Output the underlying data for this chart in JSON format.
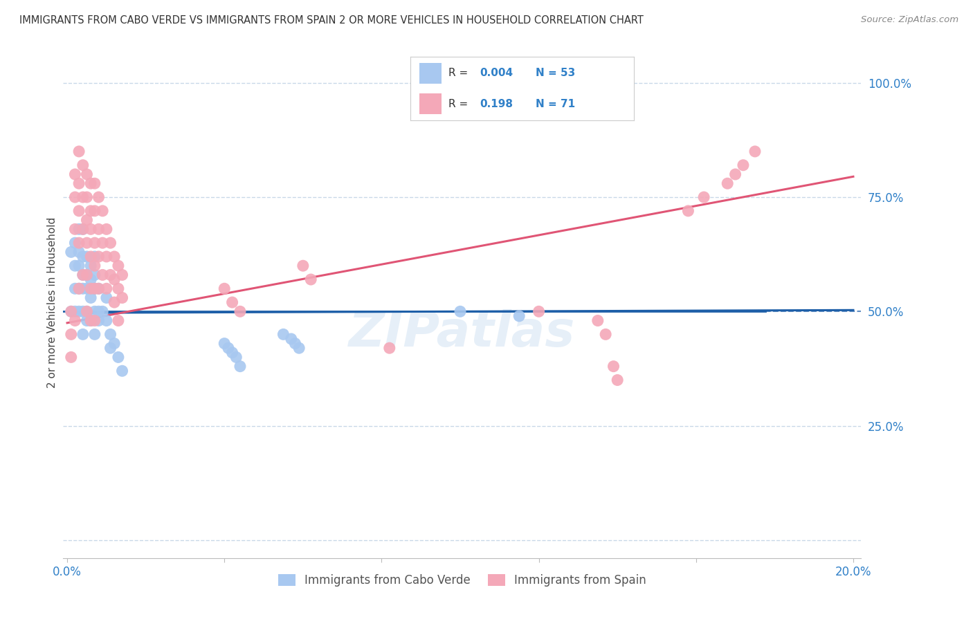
{
  "title": "IMMIGRANTS FROM CABO VERDE VS IMMIGRANTS FROM SPAIN 2 OR MORE VEHICLES IN HOUSEHOLD CORRELATION CHART",
  "source": "Source: ZipAtlas.com",
  "ylabel": "2 or more Vehicles in Household",
  "legend_cabo_verde": "Immigrants from Cabo Verde",
  "legend_spain": "Immigrants from Spain",
  "R_cabo_verde": "0.004",
  "N_cabo_verde": 53,
  "R_spain": "0.198",
  "N_spain": 71,
  "color_cabo_verde": "#A8C8F0",
  "color_spain": "#F4A8B8",
  "color_trendline_cabo_verde": "#1E5FA8",
  "color_trendline_spain": "#E05575",
  "color_text_blue": "#3080C8",
  "color_dashed_line": "#1E5FA8",
  "background_color": "#FFFFFF",
  "cabo_verde_x": [
    0.001,
    0.001,
    0.002,
    0.002,
    0.002,
    0.002,
    0.003,
    0.003,
    0.003,
    0.003,
    0.003,
    0.004,
    0.004,
    0.004,
    0.004,
    0.004,
    0.004,
    0.005,
    0.005,
    0.005,
    0.005,
    0.005,
    0.006,
    0.006,
    0.006,
    0.006,
    0.007,
    0.007,
    0.007,
    0.007,
    0.007,
    0.008,
    0.008,
    0.008,
    0.009,
    0.01,
    0.01,
    0.011,
    0.011,
    0.012,
    0.013,
    0.014,
    0.04,
    0.041,
    0.042,
    0.043,
    0.044,
    0.055,
    0.057,
    0.058,
    0.059,
    0.1,
    0.115
  ],
  "cabo_verde_y": [
    0.5,
    0.63,
    0.65,
    0.6,
    0.55,
    0.5,
    0.68,
    0.63,
    0.6,
    0.55,
    0.5,
    0.68,
    0.62,
    0.58,
    0.55,
    0.5,
    0.45,
    0.62,
    0.58,
    0.55,
    0.5,
    0.48,
    0.6,
    0.57,
    0.53,
    0.48,
    0.62,
    0.58,
    0.55,
    0.5,
    0.45,
    0.55,
    0.5,
    0.48,
    0.5,
    0.53,
    0.48,
    0.45,
    0.42,
    0.43,
    0.4,
    0.37,
    0.43,
    0.42,
    0.41,
    0.4,
    0.38,
    0.45,
    0.44,
    0.43,
    0.42,
    0.5,
    0.49
  ],
  "spain_x": [
    0.001,
    0.001,
    0.001,
    0.002,
    0.002,
    0.002,
    0.002,
    0.003,
    0.003,
    0.003,
    0.003,
    0.003,
    0.004,
    0.004,
    0.004,
    0.004,
    0.005,
    0.005,
    0.005,
    0.005,
    0.005,
    0.005,
    0.006,
    0.006,
    0.006,
    0.006,
    0.006,
    0.006,
    0.007,
    0.007,
    0.007,
    0.007,
    0.007,
    0.007,
    0.008,
    0.008,
    0.008,
    0.008,
    0.009,
    0.009,
    0.009,
    0.01,
    0.01,
    0.01,
    0.011,
    0.011,
    0.012,
    0.012,
    0.012,
    0.013,
    0.013,
    0.013,
    0.014,
    0.014,
    0.04,
    0.042,
    0.044,
    0.06,
    0.062,
    0.082,
    0.12,
    0.135,
    0.137,
    0.139,
    0.14,
    0.158,
    0.162,
    0.168,
    0.17,
    0.172,
    0.175
  ],
  "spain_y": [
    0.5,
    0.45,
    0.4,
    0.8,
    0.75,
    0.68,
    0.48,
    0.85,
    0.78,
    0.72,
    0.65,
    0.55,
    0.82,
    0.75,
    0.68,
    0.58,
    0.8,
    0.75,
    0.7,
    0.65,
    0.58,
    0.5,
    0.78,
    0.72,
    0.68,
    0.62,
    0.55,
    0.48,
    0.78,
    0.72,
    0.65,
    0.6,
    0.55,
    0.48,
    0.75,
    0.68,
    0.62,
    0.55,
    0.72,
    0.65,
    0.58,
    0.68,
    0.62,
    0.55,
    0.65,
    0.58,
    0.62,
    0.57,
    0.52,
    0.6,
    0.55,
    0.48,
    0.58,
    0.53,
    0.55,
    0.52,
    0.5,
    0.6,
    0.57,
    0.42,
    0.5,
    0.48,
    0.45,
    0.38,
    0.35,
    0.72,
    0.75,
    0.78,
    0.8,
    0.82,
    0.85
  ],
  "x_min": 0.0,
  "x_max": 0.2,
  "y_min": 0.0,
  "y_max": 1.0,
  "trendline_cv_y0": 0.497,
  "trendline_cv_y1": 0.503,
  "trendline_sp_y0": 0.475,
  "trendline_sp_y1": 0.795
}
